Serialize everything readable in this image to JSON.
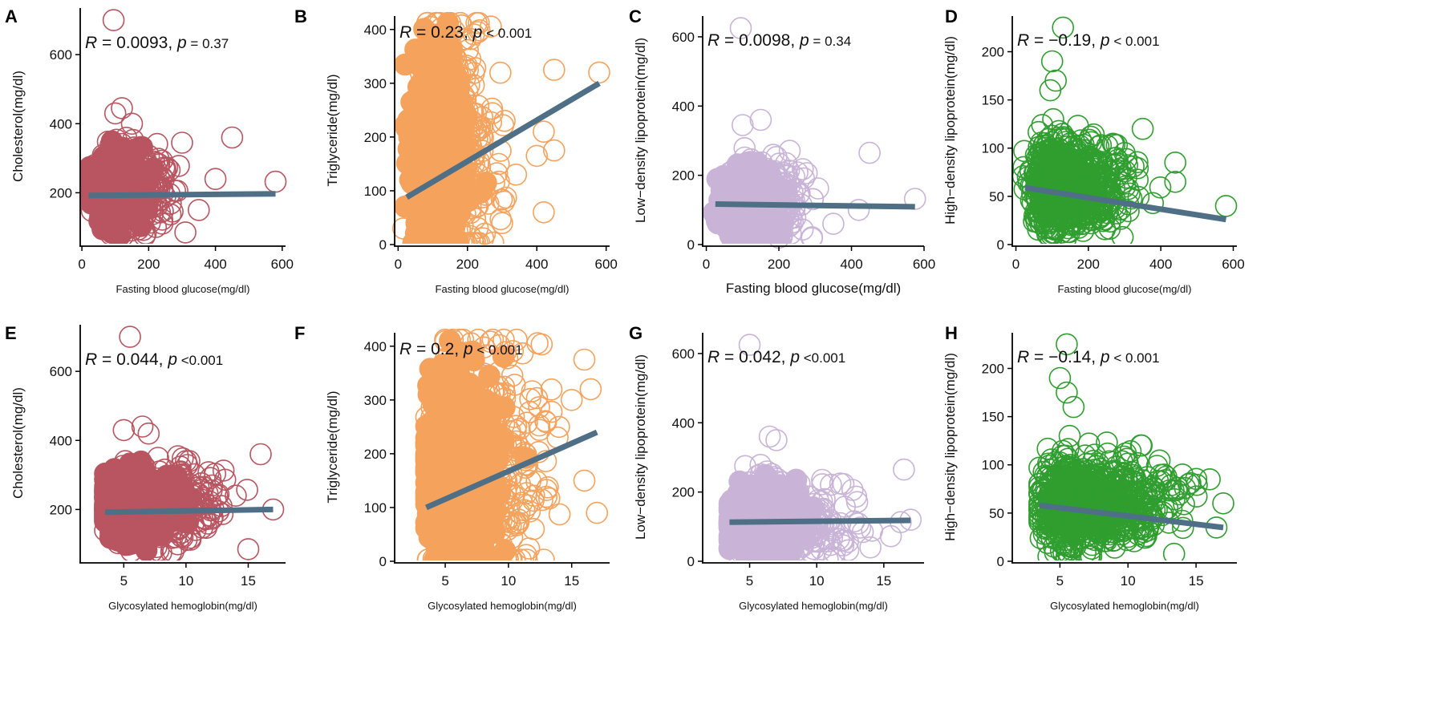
{
  "chart_data": [
    {
      "panel": "A",
      "type": "scatter",
      "xlabel": "Fasting blood glucose(mg/dl)",
      "ylabel": "Cholesterol(mg/dl)",
      "xlim": [
        -5,
        610
      ],
      "ylim": [
        50,
        735
      ],
      "xticks": [
        0,
        200,
        400,
        600
      ],
      "yticks": [
        200,
        400,
        600
      ],
      "color": "#b85560",
      "fill": true,
      "annotation": {
        "r_label": "R",
        "r_value": " = 0.0093, ",
        "p_label": "p",
        "p_value": " = 0.37"
      },
      "fit": {
        "x": [
          20,
          580
        ],
        "y": [
          192,
          197
        ]
      },
      "cloud": {
        "cx": 110,
        "cy": 210,
        "sx": 45,
        "sy": 55,
        "n": 900,
        "xmin": 20,
        "ymin": 75
      },
      "outliers": [
        [
          95,
          700
        ],
        [
          120,
          445
        ],
        [
          100,
          430
        ],
        [
          150,
          400
        ],
        [
          300,
          345
        ],
        [
          450,
          360
        ],
        [
          580,
          232
        ],
        [
          400,
          240
        ],
        [
          350,
          150
        ],
        [
          310,
          85
        ]
      ]
    },
    {
      "panel": "B",
      "type": "scatter",
      "xlabel": "Fasting blood glucose(mg/dl)",
      "ylabel": "Triglyceride(mg/dl)",
      "xlim": [
        -10,
        610
      ],
      "ylim": [
        0,
        425
      ],
      "xticks": [
        0,
        200,
        400,
        600
      ],
      "yticks": [
        0,
        100,
        200,
        300,
        400
      ],
      "color": "#f5a25d",
      "fill": true,
      "annotation": {
        "r_label": "R",
        "r_value": " = 0.23, ",
        "p_label": "p",
        "p_value": " < 0.001"
      },
      "fit": {
        "x": [
          25,
          580
        ],
        "y": [
          88,
          300
        ]
      },
      "cloud": {
        "cx": 110,
        "cy": 170,
        "sx": 40,
        "sy": 110,
        "n": 1400,
        "xmin": 20,
        "ymin": 3,
        "ymax": 412
      },
      "outliers": [
        [
          580,
          320
        ],
        [
          450,
          325
        ],
        [
          420,
          210
        ],
        [
          450,
          175
        ],
        [
          400,
          165
        ],
        [
          340,
          130
        ],
        [
          300,
          40
        ],
        [
          420,
          60
        ],
        [
          250,
          20
        ],
        [
          15,
          30
        ]
      ]
    },
    {
      "panel": "C",
      "type": "scatter",
      "xlabel": "Fasting blood glucose(mg/dl)",
      "ylabel": "Low−density lipoprotein(mg/dl)",
      "xlim": [
        -10,
        600
      ],
      "ylim": [
        0,
        660
      ],
      "xticks": [
        0,
        200,
        400,
        600
      ],
      "yticks": [
        0,
        200,
        400,
        600
      ],
      "color": "#c9b4d8",
      "fill": true,
      "annotation": {
        "r_label": "R",
        "r_value": " = 0.0098, ",
        "p_label": "p",
        "p_value": " = 0.34"
      },
      "fit": {
        "x": [
          25,
          575
        ],
        "y": [
          117,
          109
        ]
      },
      "cloud": {
        "cx": 110,
        "cy": 115,
        "sx": 40,
        "sy": 55,
        "n": 1000,
        "xmin": 20,
        "ymin": 5
      },
      "outliers": [
        [
          95,
          625
        ],
        [
          150,
          360
        ],
        [
          100,
          345
        ],
        [
          450,
          265
        ],
        [
          575,
          132
        ],
        [
          420,
          100
        ],
        [
          350,
          60
        ],
        [
          200,
          20
        ]
      ]
    },
    {
      "panel": "D",
      "type": "scatter",
      "xlabel": "Fasting blood glucose(mg/dl)",
      "ylabel": "High−density lipoprotein(mg/dl)",
      "xlim": [
        -10,
        610
      ],
      "ylim": [
        0,
        237
      ],
      "xticks": [
        0,
        200,
        400,
        600
      ],
      "yticks": [
        0,
        50,
        100,
        150,
        200
      ],
      "color": "#2f9e2f",
      "fill": false,
      "annotation": {
        "r_label": "R",
        "r_value": " = −0.19, ",
        "p_label": "p",
        "p_value": " < 0.001"
      },
      "fit": {
        "x": [
          25,
          580
        ],
        "y": [
          59,
          26
        ]
      },
      "cloud": {
        "cx": 110,
        "cy": 60,
        "sx": 45,
        "sy": 22,
        "n": 900,
        "xmin": 20,
        "ymin": 5
      },
      "outliers": [
        [
          130,
          225
        ],
        [
          100,
          190
        ],
        [
          110,
          170
        ],
        [
          95,
          160
        ],
        [
          350,
          120
        ],
        [
          440,
          85
        ],
        [
          440,
          65
        ],
        [
          580,
          40
        ],
        [
          300,
          95
        ],
        [
          250,
          80
        ]
      ]
    },
    {
      "panel": "E",
      "type": "scatter",
      "xlabel": "Glycosylated hemoglobin(mg/dl)",
      "ylabel": "Cholesterol(mg/dl)",
      "xlim": [
        1.5,
        18
      ],
      "ylim": [
        50,
        735
      ],
      "xticks": [
        5,
        10,
        15
      ],
      "yticks": [
        200,
        400,
        600
      ],
      "color": "#b85560",
      "fill": true,
      "annotation": {
        "r_label": "R",
        "r_value": " = 0.044, ",
        "p_label": "p",
        "p_value": " <0.001"
      },
      "fit": {
        "x": [
          3.5,
          17
        ],
        "y": [
          192,
          200
        ]
      },
      "cloud": {
        "cx": 6,
        "cy": 210,
        "sx": 1.8,
        "sy": 55,
        "n": 900,
        "xmin": 3.5,
        "ymin": 75
      },
      "outliers": [
        [
          5.5,
          700
        ],
        [
          6.5,
          440
        ],
        [
          5,
          430
        ],
        [
          7,
          420
        ],
        [
          16,
          360
        ],
        [
          17,
          200
        ],
        [
          15,
          85
        ],
        [
          14,
          240
        ],
        [
          10,
          340
        ]
      ]
    },
    {
      "panel": "F",
      "type": "scatter",
      "xlabel": "Glycosylated hemoglobin(mg/dl)",
      "ylabel": "Triglyceride(mg/dl)",
      "xlim": [
        1,
        18
      ],
      "ylim": [
        0,
        425
      ],
      "xticks": [
        5,
        10,
        15
      ],
      "yticks": [
        0,
        100,
        200,
        300,
        400
      ],
      "color": "#f5a25d",
      "fill": true,
      "annotation": {
        "r_label": "R",
        "r_value": " = 0.2, ",
        "p_label": "p",
        "p_value": " < 0.001"
      },
      "fit": {
        "x": [
          3.5,
          17
        ],
        "y": [
          100,
          240
        ]
      },
      "cloud": {
        "cx": 6,
        "cy": 170,
        "sx": 1.6,
        "sy": 110,
        "n": 1400,
        "xmin": 3.5,
        "ymin": 3,
        "ymax": 412
      },
      "outliers": [
        [
          16,
          375
        ],
        [
          16.5,
          320
        ],
        [
          15,
          300
        ],
        [
          14,
          250
        ],
        [
          16,
          150
        ],
        [
          17,
          90
        ],
        [
          13,
          120
        ],
        [
          12,
          60
        ]
      ]
    },
    {
      "panel": "G",
      "type": "scatter",
      "xlabel": "Glycosylated hemoglobin(mg/dl)",
      "ylabel": "Low−density lipoprotein(mg/dl)",
      "xlim": [
        1.5,
        18
      ],
      "ylim": [
        0,
        660
      ],
      "xticks": [
        5,
        10,
        15
      ],
      "yticks": [
        0,
        200,
        400,
        600
      ],
      "color": "#c9b4d8",
      "fill": true,
      "annotation": {
        "r_label": "R",
        "r_value": " = 0.042, ",
        "p_label": "p",
        "p_value": " <0.001"
      },
      "fit": {
        "x": [
          3.5,
          17
        ],
        "y": [
          113,
          118
        ]
      },
      "cloud": {
        "cx": 6,
        "cy": 115,
        "sx": 1.6,
        "sy": 55,
        "n": 1000,
        "xmin": 3.5,
        "ymin": 5
      },
      "outliers": [
        [
          5,
          625
        ],
        [
          6.5,
          360
        ],
        [
          7,
          350
        ],
        [
          16.5,
          265
        ],
        [
          17,
          120
        ],
        [
          14,
          40
        ],
        [
          12,
          60
        ]
      ]
    },
    {
      "panel": "H",
      "type": "scatter",
      "xlabel": "Glycosylated hemoglobin(mg/dl)",
      "ylabel": "High−density lipoprotein(mg/dl)",
      "xlim": [
        1.5,
        18
      ],
      "ylim": [
        0,
        237
      ],
      "xticks": [
        5,
        10,
        15
      ],
      "yticks": [
        0,
        50,
        100,
        150,
        200
      ],
      "color": "#2f9e2f",
      "fill": false,
      "annotation": {
        "r_label": "R",
        "r_value": " = −0.14, ",
        "p_label": "p",
        "p_value": " < 0.001"
      },
      "fit": {
        "x": [
          3.5,
          17
        ],
        "y": [
          58,
          35
        ]
      },
      "cloud": {
        "cx": 6,
        "cy": 60,
        "sx": 1.8,
        "sy": 22,
        "n": 900,
        "xmin": 3.5,
        "ymin": 5
      },
      "outliers": [
        [
          5.5,
          225
        ],
        [
          5,
          190
        ],
        [
          5.5,
          175
        ],
        [
          6,
          160
        ],
        [
          11,
          120
        ],
        [
          14,
          90
        ],
        [
          16,
          85
        ],
        [
          17,
          60
        ],
        [
          13,
          40
        ],
        [
          16.5,
          35
        ]
      ]
    }
  ]
}
